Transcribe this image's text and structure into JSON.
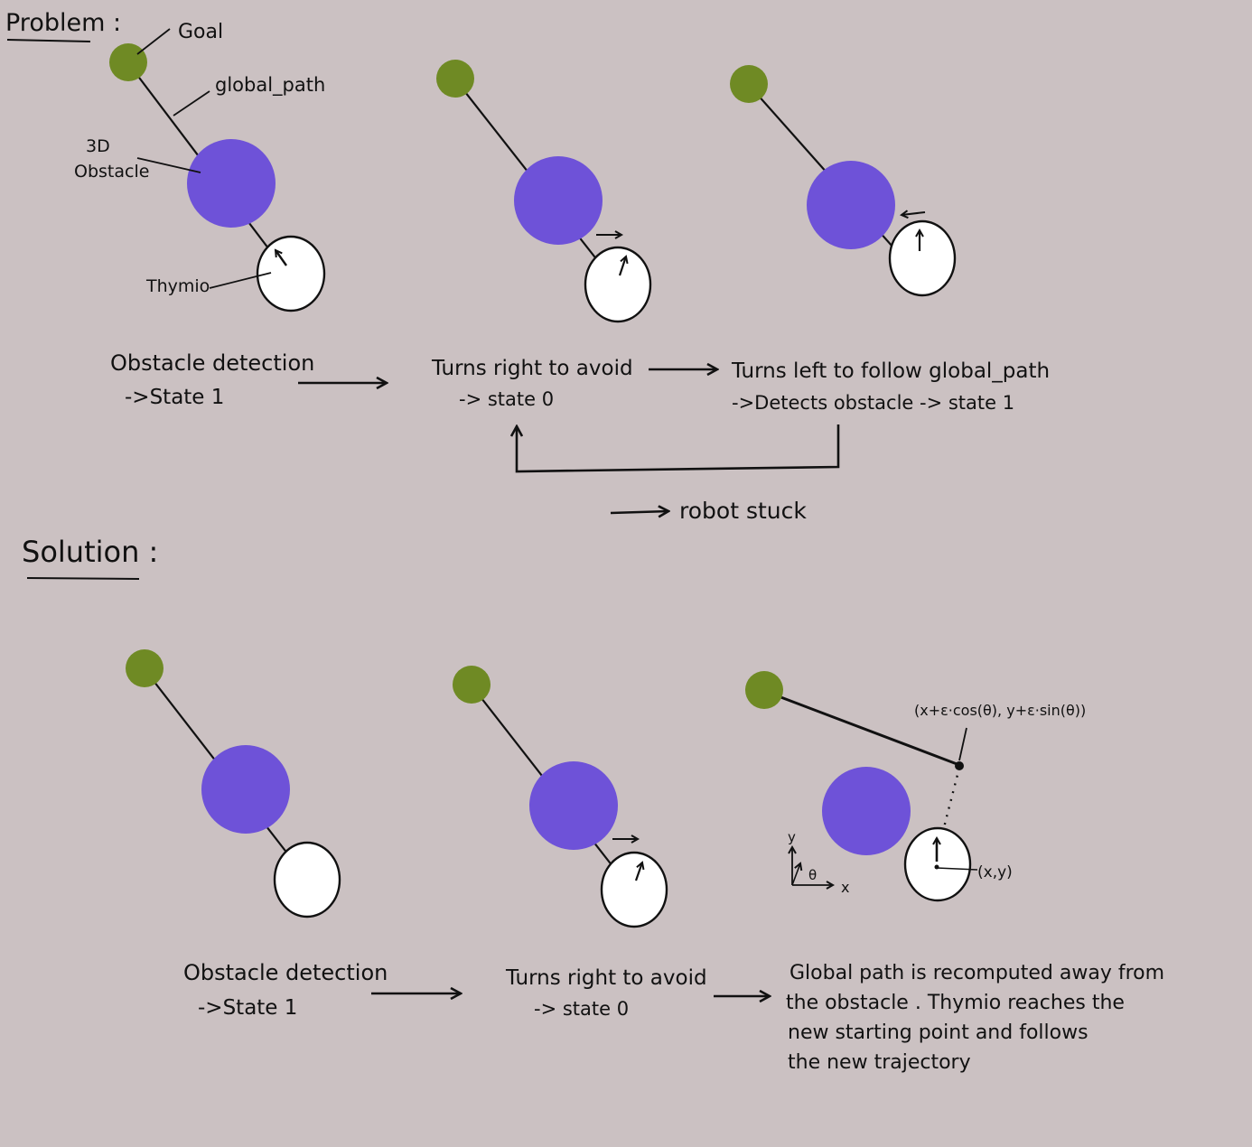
{
  "colors": {
    "background": "#cbc1c2",
    "goal": "#6f8a24",
    "obstacle": "#6e52d8",
    "thymio": "#ffffff",
    "ink": "#111111"
  },
  "problem": {
    "heading": "Problem :",
    "labels": {
      "goal": "Goal",
      "global_path": "global_path",
      "obstacle_line1": "3D",
      "obstacle_line2": "Obstacle",
      "thymio": "Thymio"
    },
    "steps": [
      {
        "line1": "Obstacle detection",
        "line2": "->State 1"
      },
      {
        "line1": "Turns right to avoid",
        "line2": "-> state 0"
      },
      {
        "line1": "Turns left to follow global_path",
        "line2": "->Detects obstacle -> state 1"
      }
    ],
    "outcome": "robot stuck"
  },
  "solution": {
    "heading": "Solution :",
    "steps": [
      {
        "line1": "Obstacle detection",
        "line2": "->State 1"
      },
      {
        "line1": "Turns right to avoid",
        "line2": "-> state 0"
      },
      {
        "lines": [
          "Global path is recomputed away from",
          "the obstacle . Thymio reaches the",
          "new starting point and follows",
          "the new trajectory"
        ]
      }
    ],
    "new_point_formula": "(x+ε·cos(θ), y+ε·sin(θ))",
    "position_label": "(x,y)",
    "axis_y": "y",
    "axis_x": "x",
    "axis_theta": "θ"
  }
}
